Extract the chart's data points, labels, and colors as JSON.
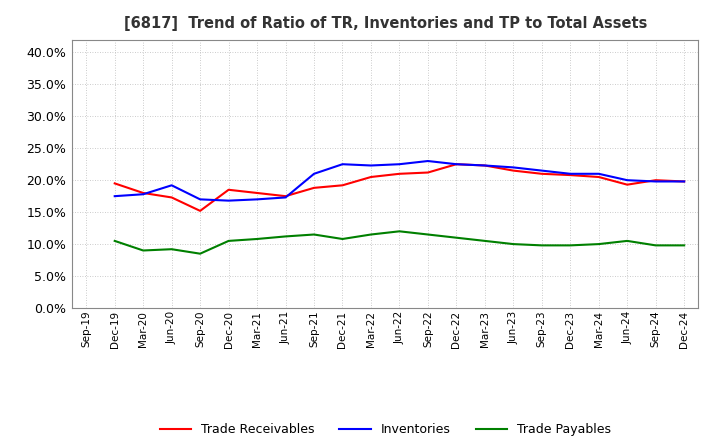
{
  "title": "[6817]  Trend of Ratio of TR, Inventories and TP to Total Assets",
  "labels": [
    "Sep-19",
    "Dec-19",
    "Mar-20",
    "Jun-20",
    "Sep-20",
    "Dec-20",
    "Mar-21",
    "Jun-21",
    "Sep-21",
    "Dec-21",
    "Mar-22",
    "Jun-22",
    "Sep-22",
    "Dec-22",
    "Mar-23",
    "Jun-23",
    "Sep-23",
    "Dec-23",
    "Mar-24",
    "Jun-24",
    "Sep-24",
    "Dec-24"
  ],
  "trade_receivables": [
    null,
    19.5,
    18.0,
    17.3,
    15.2,
    18.5,
    18.0,
    17.5,
    18.8,
    19.2,
    20.5,
    21.0,
    21.2,
    22.5,
    22.3,
    21.5,
    21.0,
    20.8,
    20.5,
    19.3,
    20.0,
    19.8
  ],
  "inventories": [
    null,
    17.5,
    17.8,
    19.2,
    17.0,
    16.8,
    17.0,
    17.3,
    21.0,
    22.5,
    22.3,
    22.5,
    23.0,
    22.5,
    22.3,
    22.0,
    21.5,
    21.0,
    21.0,
    20.0,
    19.8,
    19.8
  ],
  "trade_payables": [
    null,
    10.5,
    9.0,
    9.2,
    8.5,
    10.5,
    10.8,
    11.2,
    11.5,
    10.8,
    11.5,
    12.0,
    11.5,
    11.0,
    10.5,
    10.0,
    9.8,
    9.8,
    10.0,
    10.5,
    9.8,
    9.8
  ],
  "tr_color": "#ff0000",
  "inv_color": "#0000ff",
  "tp_color": "#008000",
  "ylim": [
    0,
    42
  ],
  "yticks": [
    0.0,
    5.0,
    10.0,
    15.0,
    20.0,
    25.0,
    30.0,
    35.0,
    40.0
  ],
  "background_color": "#ffffff",
  "grid_color": "#aaaaaa",
  "legend_labels": [
    "Trade Receivables",
    "Inventories",
    "Trade Payables"
  ]
}
